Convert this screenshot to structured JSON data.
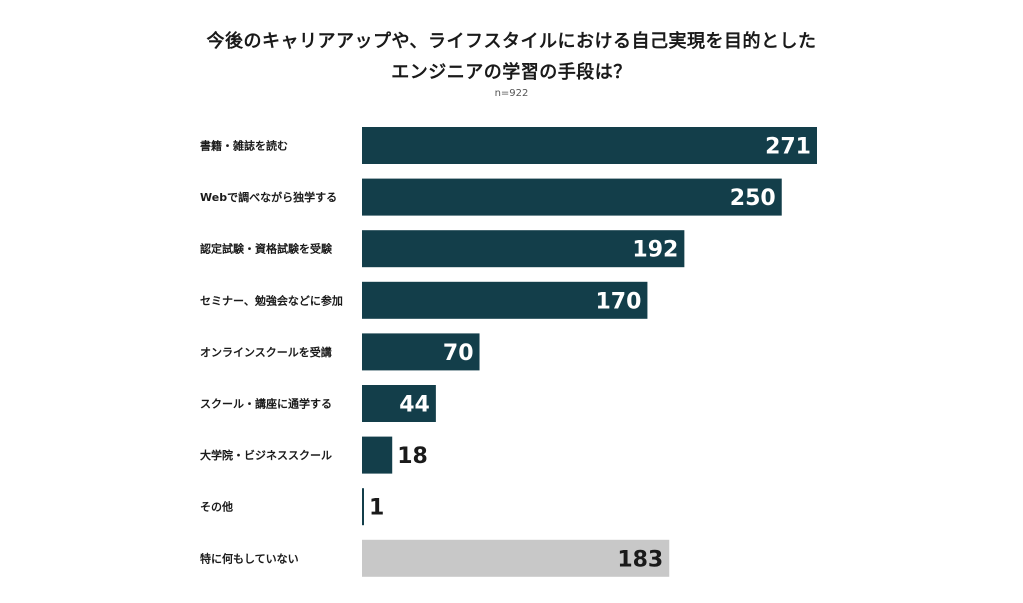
{
  "header": {
    "title_line1": "今後のキャリアアップや、ライフスタイルにおける自己実現を目的とした",
    "title_line2": "エンジニアの学習の手段は？",
    "sample_size": "n=922"
  },
  "colors": {
    "primary_bar": "#133e4a",
    "neutral_bar": "#c8c8c8"
  },
  "chart_data": {
    "type": "bar",
    "orientation": "horizontal",
    "title": "今後のキャリアアップや、ライフスタイルにおける自己実現を目的としたエンジニアの学習の手段は？",
    "subtitle": "n=922",
    "categories": [
      "書籍・雑誌を読む",
      "Webで調べながら独学する",
      "認定試験・資格試験を受験",
      "セミナー、勉強会などに参加",
      "オンラインスクールを受講",
      "スクール・講座に通学する",
      "大学院・ビジネススクール",
      "その他",
      "特に何もしていない"
    ],
    "values": [
      271,
      250,
      192,
      170,
      70,
      44,
      18,
      1,
      183
    ],
    "bar_colors": [
      "primary",
      "primary",
      "primary",
      "primary",
      "primary",
      "primary",
      "primary",
      "primary",
      "neutral"
    ],
    "xlim": [
      0,
      271
    ],
    "grid": false,
    "legend": "none"
  }
}
